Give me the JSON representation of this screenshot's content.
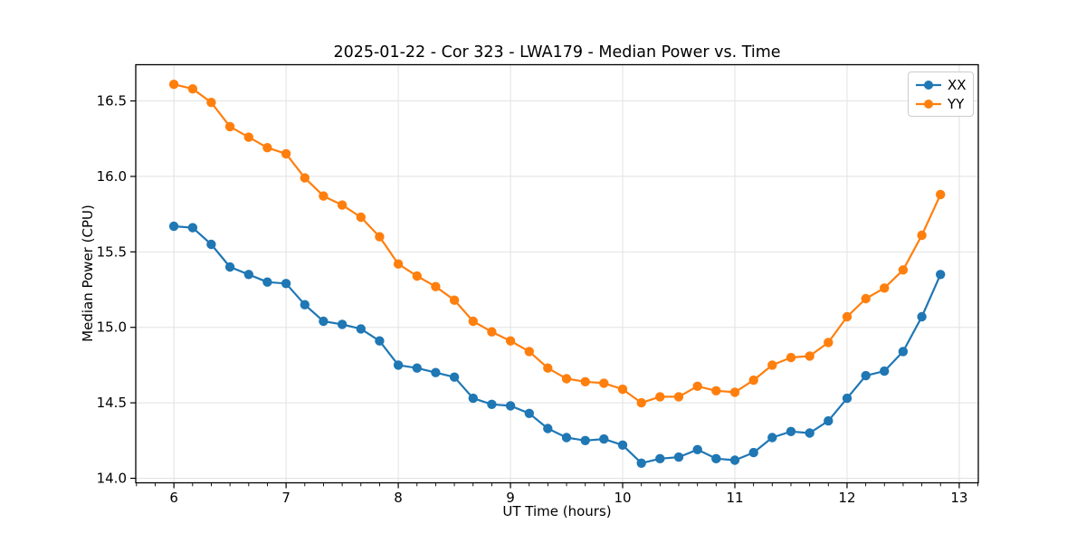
{
  "chart_data": {
    "type": "line",
    "title": "2025-01-22 - Cor 323 - LWA179 - Median Power vs. Time",
    "xlabel": "UT Time (hours)",
    "ylabel": "Median Power (CPU)",
    "xlim": [
      5.66,
      13.17
    ],
    "ylim": [
      13.97,
      16.74
    ],
    "xticks": [
      6,
      7,
      8,
      9,
      10,
      11,
      12,
      13
    ],
    "yticks": [
      14.0,
      14.5,
      15.0,
      15.5,
      16.0,
      16.5
    ],
    "x_minor_step": 0.16667,
    "grid": true,
    "grid_color": "#e2e2e2",
    "axis_color": "#000000",
    "legend_position": "upper right",
    "x": [
      6.0,
      6.167,
      6.333,
      6.5,
      6.667,
      6.833,
      7.0,
      7.167,
      7.333,
      7.5,
      7.667,
      7.833,
      8.0,
      8.167,
      8.333,
      8.5,
      8.667,
      8.833,
      9.0,
      9.167,
      9.333,
      9.5,
      9.667,
      9.833,
      10.0,
      10.167,
      10.333,
      10.5,
      10.667,
      10.833,
      11.0,
      11.167,
      11.333,
      11.5,
      11.667,
      11.833,
      12.0,
      12.167,
      12.333,
      12.5,
      12.667,
      12.833
    ],
    "series": [
      {
        "name": "XX",
        "color": "#1f77b4",
        "values": [
          15.67,
          15.66,
          15.55,
          15.4,
          15.35,
          15.3,
          15.29,
          15.15,
          15.04,
          15.02,
          14.99,
          14.91,
          14.75,
          14.73,
          14.7,
          14.67,
          14.53,
          14.49,
          14.48,
          14.43,
          14.33,
          14.27,
          14.25,
          14.26,
          14.22,
          14.1,
          14.13,
          14.14,
          14.19,
          14.13,
          14.12,
          14.17,
          14.27,
          14.31,
          14.3,
          14.38,
          14.53,
          14.68,
          14.71,
          14.84,
          15.07,
          15.35
        ]
      },
      {
        "name": "YY",
        "color": "#ff7f0e",
        "values": [
          16.61,
          16.58,
          16.49,
          16.33,
          16.26,
          16.19,
          16.15,
          15.99,
          15.87,
          15.81,
          15.73,
          15.6,
          15.42,
          15.34,
          15.27,
          15.18,
          15.04,
          14.97,
          14.91,
          14.84,
          14.73,
          14.66,
          14.64,
          14.63,
          14.59,
          14.5,
          14.54,
          14.54,
          14.61,
          14.58,
          14.57,
          14.65,
          14.75,
          14.8,
          14.81,
          14.9,
          15.07,
          15.19,
          15.26,
          15.38,
          15.61,
          15.88
        ]
      }
    ]
  }
}
